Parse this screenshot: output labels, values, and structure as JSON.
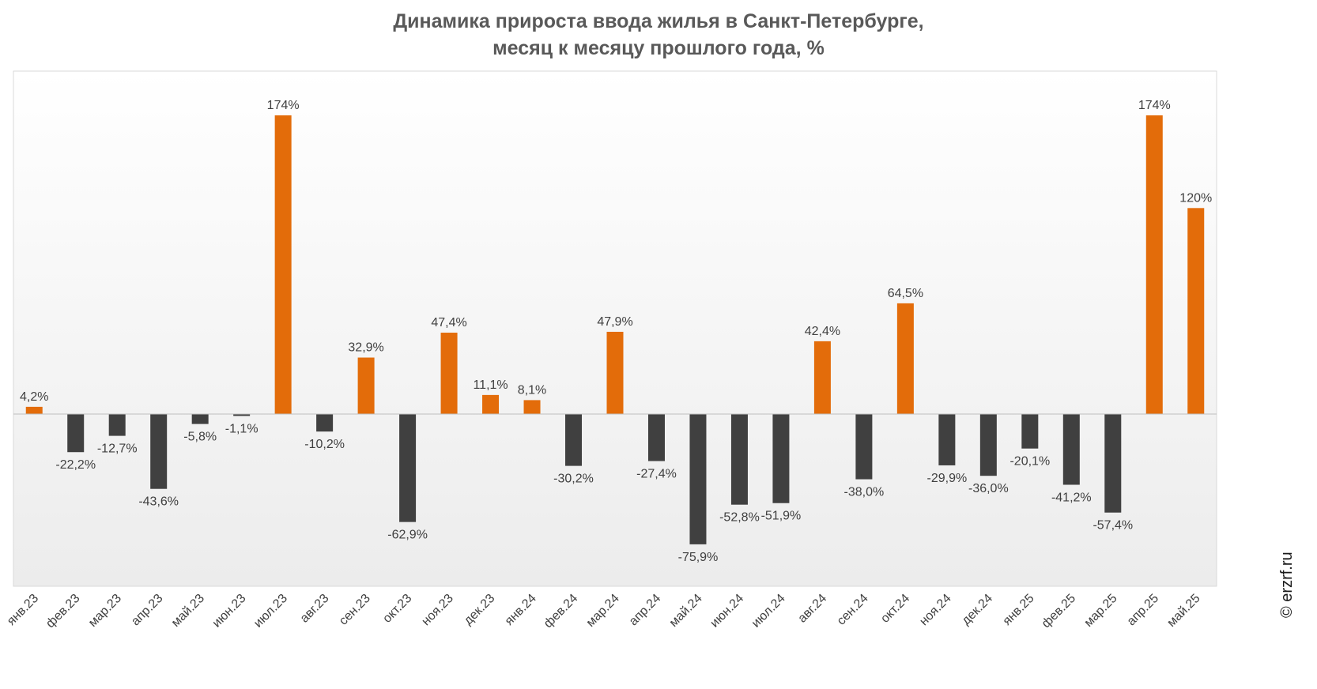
{
  "title_line1": "Динамика прироста ввода жилья в Санкт-Петербурге,",
  "title_line2": "месяц к месяцу прошлого года, %",
  "watermark": "© erzrf.ru",
  "colors": {
    "positive": "#E36C0A",
    "negative": "#404040",
    "label": "#404040",
    "frame": "#D9D9D9",
    "title": "#595959"
  },
  "chart_data": {
    "type": "bar",
    "title": "Динамика прироста ввода жилья в Санкт-Петербурге, месяц к месяцу прошлого года, %",
    "categories": [
      "янв.23",
      "фев.23",
      "мар.23",
      "апр.23",
      "май.23",
      "июн.23",
      "июл.23",
      "авг.23",
      "сен.23",
      "окт.23",
      "ноя.23",
      "дек.23",
      "янв.24",
      "фев.24",
      "мар.24",
      "апр.24",
      "май.24",
      "июн.24",
      "июл.24",
      "авг.24",
      "сен.24",
      "окт.24",
      "ноя.24",
      "дек.24",
      "янв.25",
      "фев.25",
      "мар.25",
      "апр.25",
      "май.25"
    ],
    "values": [
      4.2,
      -22.2,
      -12.7,
      -43.6,
      -5.8,
      -1.1,
      174,
      -10.2,
      32.9,
      -62.9,
      47.4,
      11.1,
      8.1,
      -30.2,
      47.9,
      -27.4,
      -75.9,
      -52.8,
      -51.9,
      42.4,
      -38.0,
      64.5,
      -29.9,
      -36.0,
      -20.1,
      -41.2,
      -57.4,
      174,
      120
    ],
    "labels": [
      "4,2%",
      "-22,2%",
      "-12,7%",
      "-43,6%",
      "-5,8%",
      "-1,1%",
      "174%",
      "-10,2%",
      "32,9%",
      "-62,9%",
      "47,4%",
      "11,1%",
      "8,1%",
      "-30,2%",
      "47,9%",
      "-27,4%",
      "-75,9%",
      "-52,8%",
      "-51,9%",
      "42,4%",
      "-38,0%",
      "64,5%",
      "-29,9%",
      "-36,0%",
      "-20,1%",
      "-41,2%",
      "-57,4%",
      "174%",
      "120%"
    ],
    "xlabel": "",
    "ylabel": "",
    "grid": false,
    "legend": "none"
  }
}
